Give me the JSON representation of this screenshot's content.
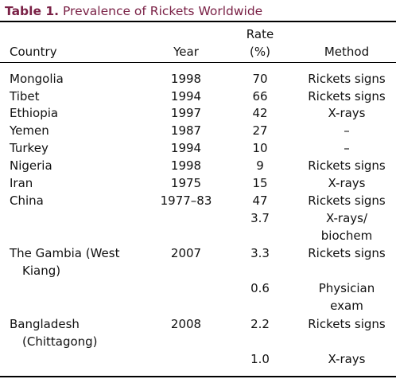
{
  "table": {
    "caption_label": "Table 1.",
    "caption_title": "Prevalence of Rickets Worldwide",
    "headers": {
      "country": "Country",
      "year": "Year",
      "rate_line1": "Rate",
      "rate_line2": "(%)",
      "method": "Method"
    },
    "rows": [
      {
        "country": "Mongolia",
        "year": "1998",
        "rate": "70",
        "method": "Rickets signs"
      },
      {
        "country": "Tibet",
        "year": "1994",
        "rate": "66",
        "method": "Rickets signs"
      },
      {
        "country": "Ethiopia",
        "year": "1997",
        "rate": "42",
        "method": "X-rays"
      },
      {
        "country": "Yemen",
        "year": "1987",
        "rate": "27",
        "method": "–"
      },
      {
        "country": "Turkey",
        "year": "1994",
        "rate": "10",
        "method": "–"
      },
      {
        "country": "Nigeria",
        "year": "1998",
        "rate": "9",
        "method": "Rickets signs"
      },
      {
        "country": "Iran",
        "year": "1975",
        "rate": "15",
        "method": "X-rays"
      },
      {
        "country": "China",
        "year": "1977–83",
        "rate": "47",
        "method": "Rickets signs"
      },
      {
        "country": "",
        "year": "",
        "rate": "3.7",
        "method_line1": "X-rays/",
        "method_line2": "biochem"
      },
      {
        "country_line1": "The Gambia (West",
        "country_line2": "Kiang)",
        "year": "2007",
        "rate": "3.3",
        "method": "Rickets signs"
      },
      {
        "country": "",
        "year": "",
        "rate": "0.6",
        "method_line1": "Physician",
        "method_line2": "exam"
      },
      {
        "country_line1": "Bangladesh",
        "country_line2": "(Chittagong)",
        "year": "2008",
        "rate": "2.2",
        "method": "Rickets signs"
      },
      {
        "country": "",
        "year": "",
        "rate": "1.0",
        "method": "X-rays"
      }
    ]
  }
}
